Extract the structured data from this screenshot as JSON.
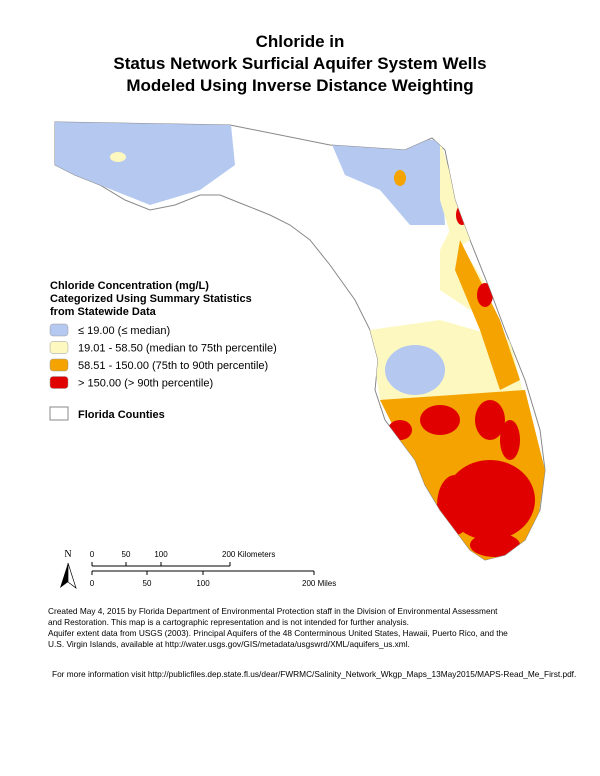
{
  "title": [
    "Chloride in",
    "Status Network Surficial Aquifer System Wells",
    "Modeled Using Inverse Distance Weighting"
  ],
  "legend": {
    "title": [
      "Chloride Concentration (mg/L)",
      "Categorized Using Summary Statistics",
      "from Statewide Data"
    ],
    "items": [
      {
        "label": "≤ 19.00 (≤ median)",
        "color": "#b4c8f0"
      },
      {
        "label": "19.01 - 58.50 (median to 75th percentile)",
        "color": "#fdf8c0"
      },
      {
        "label": "58.51 - 150.00 (75th to 90th percentile)",
        "color": "#f4a300"
      },
      {
        "label": "> 150.00 (> 90th percentile)",
        "color": "#e00000"
      }
    ],
    "counties": "Florida Counties"
  },
  "north": "N",
  "scale": {
    "km": [
      "0",
      "50",
      "100",
      "200 Kilometers"
    ],
    "miles": [
      "0",
      "50",
      "100",
      "200 Miles"
    ]
  },
  "credits": [
    "Created May 4, 2015 by Florida Department of Environmental Protection staff in the Division of Environmental Assessment",
    "and Restoration.  This map is a cartographic representation and is not intended for further analysis.",
    "Aquifer extent data from USGS (2003). Principal Aquifers of the 48 Conterminous United States, Hawaii, Puerto Rico, and the",
    "U.S. Virgin Islands, available at http://water.usgs.gov/GIS/metadata/usgswrd/XML/aquifers_us.xml."
  ],
  "more_info": "For more information visit http://publicfiles.dep.state.fl.us/dear/FWRMC/Salinity_Network_Wkgp_Maps_13May2015/MAPS-Read_Me_First.pdf."
}
